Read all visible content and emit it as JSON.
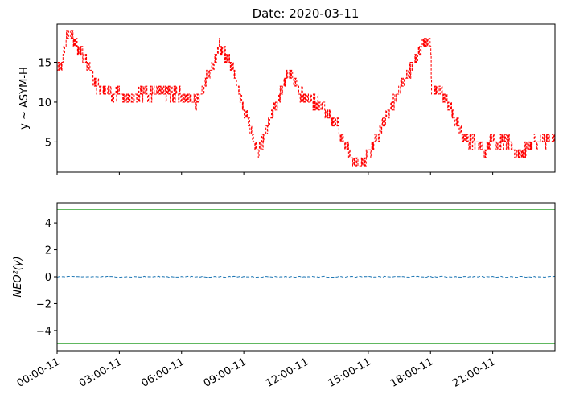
{
  "chart_data": [
    {
      "type": "line",
      "title": "Date: 2020-03-11",
      "ylabel": "y ~ ASYM-H",
      "xlabel": "",
      "x_unit": "hours since 2020-03-11 00:00",
      "xlim": [
        0,
        24
      ],
      "ylim": [
        1.2,
        19.8
      ],
      "yticks": [
        5,
        10,
        15
      ],
      "ytick_labels": [
        "5",
        "10",
        "15"
      ],
      "grid": false,
      "series": [
        {
          "name": "ASYM-H",
          "color": "#ff0000",
          "style": "dashed",
          "keypoints": [
            [
              0.0,
              14
            ],
            [
              0.25,
              15
            ],
            [
              0.45,
              18
            ],
            [
              0.6,
              19
            ],
            [
              0.75,
              18
            ],
            [
              1.0,
              17
            ],
            [
              1.3,
              16
            ],
            [
              1.6,
              14
            ],
            [
              1.9,
              12
            ],
            [
              2.3,
              11.5
            ],
            [
              2.8,
              11
            ],
            [
              3.0,
              11
            ],
            [
              3.3,
              10.5
            ],
            [
              3.6,
              10.5
            ],
            [
              4.0,
              11
            ],
            [
              4.5,
              11
            ],
            [
              5.0,
              11.5
            ],
            [
              5.5,
              11
            ],
            [
              6.0,
              11
            ],
            [
              6.5,
              10.5
            ],
            [
              6.7,
              10
            ],
            [
              7.0,
              11.5
            ],
            [
              7.3,
              13.5
            ],
            [
              7.6,
              15
            ],
            [
              7.8,
              17
            ],
            [
              8.0,
              16.5
            ],
            [
              8.4,
              15
            ],
            [
              8.7,
              12
            ],
            [
              9.0,
              9
            ],
            [
              9.3,
              7
            ],
            [
              9.5,
              5
            ],
            [
              9.7,
              3.5
            ],
            [
              9.9,
              5
            ],
            [
              10.3,
              8
            ],
            [
              10.6,
              10
            ],
            [
              10.9,
              12
            ],
            [
              11.1,
              13.5
            ],
            [
              11.3,
              13.5
            ],
            [
              11.6,
              11.5
            ],
            [
              12.0,
              10.5
            ],
            [
              12.5,
              10
            ],
            [
              13.0,
              9
            ],
            [
              13.5,
              7
            ],
            [
              13.8,
              5
            ],
            [
              14.1,
              3.5
            ],
            [
              14.3,
              2.5
            ],
            [
              14.6,
              2.2
            ],
            [
              14.9,
              3
            ],
            [
              15.2,
              4.5
            ],
            [
              15.5,
              6
            ],
            [
              15.8,
              8
            ],
            [
              16.2,
              10
            ],
            [
              16.5,
              11.5
            ],
            [
              16.8,
              13
            ],
            [
              17.1,
              14.5
            ],
            [
              17.4,
              16
            ],
            [
              17.6,
              17.5
            ],
            [
              17.8,
              18
            ],
            [
              18.0,
              17.5
            ],
            [
              18.05,
              10.5
            ],
            [
              18.2,
              11.5
            ],
            [
              18.5,
              11.5
            ],
            [
              18.8,
              10
            ],
            [
              19.2,
              8
            ],
            [
              19.5,
              6
            ],
            [
              19.9,
              5
            ],
            [
              20.3,
              5
            ],
            [
              20.6,
              3.5
            ],
            [
              20.9,
              5.5
            ],
            [
              21.3,
              5
            ],
            [
              21.7,
              5
            ],
            [
              22.0,
              4
            ],
            [
              22.4,
              3.5
            ],
            [
              22.7,
              4.5
            ],
            [
              23.0,
              5
            ],
            [
              23.4,
              5
            ],
            [
              24.0,
              5.5
            ]
          ]
        }
      ]
    },
    {
      "type": "line",
      "title": "",
      "ylabel": "NEO²(y)",
      "xlabel": "",
      "x_unit": "hours since 2020-03-11 00:00",
      "xlim": [
        0,
        24
      ],
      "ylim": [
        -5.5,
        5.5
      ],
      "yticks": [
        -4,
        -2,
        0,
        2,
        4
      ],
      "ytick_labels": [
        "−4",
        "−2",
        "0",
        "2",
        "4"
      ],
      "xticks": [
        0,
        3,
        6,
        9,
        12,
        15,
        18,
        21
      ],
      "xtick_labels": [
        "00:00-11",
        "03:00-11",
        "06:00-11",
        "09:00-11",
        "12:00-11",
        "15:00-11",
        "18:00-11",
        "21:00-11"
      ],
      "grid": false,
      "series": [
        {
          "name": "NEO²(y)",
          "color": "#1f77b4",
          "style": "dashed",
          "values_constant": 0
        }
      ],
      "hlines": [
        {
          "y": 5,
          "color": "#2ca02c"
        },
        {
          "y": -5,
          "color": "#2ca02c"
        }
      ]
    }
  ]
}
